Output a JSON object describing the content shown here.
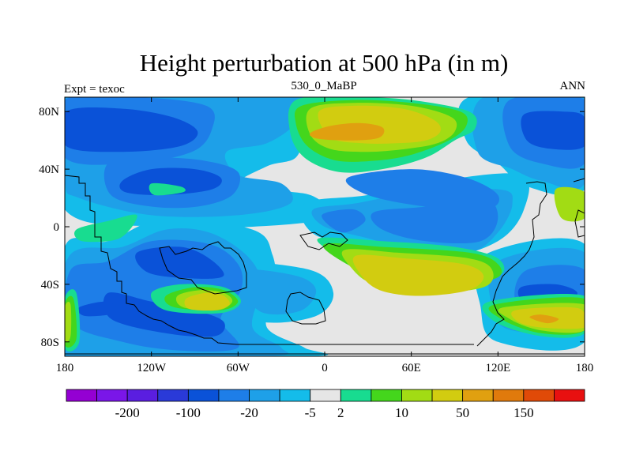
{
  "chart_data": {
    "type": "contour_map",
    "title": "Height perturbation at 500 hPa (in m)",
    "left_label": "Expt = texoc",
    "center_label": "530_0_MaBP",
    "right_label": "ANN",
    "x_ticks": [
      {
        "value": -180,
        "label": "180"
      },
      {
        "value": -120,
        "label": "120W"
      },
      {
        "value": -60,
        "label": "60W"
      },
      {
        "value": 0,
        "label": "0"
      },
      {
        "value": 60,
        "label": "60E"
      },
      {
        "value": 120,
        "label": "120E"
      },
      {
        "value": 180,
        "label": "180"
      }
    ],
    "y_ticks": [
      {
        "value": 80,
        "label": "80N"
      },
      {
        "value": 40,
        "label": "40N"
      },
      {
        "value": 0,
        "label": "0"
      },
      {
        "value": -40,
        "label": "40S"
      },
      {
        "value": -80,
        "label": "80S"
      }
    ],
    "xlim": [
      -180,
      180
    ],
    "ylim": [
      -90,
      90
    ],
    "colorbar": {
      "colors": [
        "#9400d3",
        "#7a16e8",
        "#5a1ee0",
        "#2a3ad8",
        "#0a52d8",
        "#1e7ee8",
        "#1ea0e8",
        "#14bcea",
        "#e6e6e6",
        "#18dc90",
        "#44d61c",
        "#a2dc14",
        "#d2cc10",
        "#e0a010",
        "#e07a0c",
        "#e04a08",
        "#e81010"
      ],
      "tick_labels": [
        {
          "after_index": 1,
          "label": "-200"
        },
        {
          "after_index": 3,
          "label": "-100"
        },
        {
          "after_index": 5,
          "label": "-20"
        },
        {
          "after_index": 7,
          "label": "-5"
        },
        {
          "after_index": 8,
          "label": "2"
        },
        {
          "after_index": 10,
          "label": "10"
        },
        {
          "after_index": 12,
          "label": "50"
        },
        {
          "after_index": 14,
          "label": "150"
        }
      ]
    },
    "field_levels": [
      {
        "color": "#0a52d8",
        "regions": [
          [
            -179,
            80,
            -140,
            82,
            -105,
            76,
            -88,
            66,
            -100,
            56,
            -140,
            52,
            -179,
            56
          ],
          [
            138,
            78,
            165,
            80,
            180,
            76,
            180,
            56,
            158,
            54,
            140,
            60
          ],
          [
            -140,
            32,
            -120,
            40,
            -90,
            40,
            -72,
            34,
            -78,
            26,
            -110,
            22,
            -138,
            24
          ],
          [
            -150,
            -46,
            -120,
            -52,
            -90,
            -58,
            -70,
            -66,
            -76,
            -76,
            -110,
            -74,
            -148,
            -64
          ],
          [
            -130,
            -18,
            -100,
            -14,
            -80,
            -22,
            -70,
            -34,
            -90,
            -36,
            -122,
            -32
          ],
          [
            -170,
            -56,
            -150,
            -52,
            -146,
            -60,
            -166,
            -62
          ],
          [
            136,
            -42,
            160,
            -40,
            175,
            -46,
            162,
            -54,
            138,
            -52
          ]
        ]
      },
      {
        "color": "#1e7ee8",
        "regions": [
          [
            -180,
            88,
            -130,
            90,
            -82,
            84,
            -78,
            68,
            -92,
            52,
            -135,
            44,
            -180,
            48
          ],
          [
            -150,
            44,
            -120,
            48,
            -84,
            46,
            -60,
            38,
            -64,
            22,
            -88,
            14,
            -120,
            14,
            -148,
            22
          ],
          [
            -176,
            -30,
            -150,
            -24,
            -120,
            -10,
            -80,
            -12,
            -60,
            -26,
            -58,
            -44,
            -72,
            -64,
            -60,
            -84,
            -100,
            -86,
            -140,
            -80,
            -176,
            -66
          ],
          [
            128,
            88,
            180,
            88,
            180,
            44,
            150,
            44,
            128,
            56
          ],
          [
            140,
            -30,
            180,
            -30,
            180,
            -64,
            150,
            -64,
            132,
            -52
          ],
          [
            34,
            10,
            70,
            14,
            110,
            20,
            120,
            6,
            108,
            -10,
            70,
            -10,
            40,
            -2
          ],
          [
            -2,
            8,
            20,
            12,
            28,
            4,
            12,
            -4
          ],
          [
            16,
            34,
            60,
            40,
            98,
            34,
            120,
            22,
            112,
            12,
            70,
            14,
            30,
            22
          ]
        ]
      },
      {
        "color": "#1ea0e8",
        "regions": [
          [
            -180,
            90,
            -20,
            90,
            -24,
            82,
            -20,
            72,
            -40,
            58,
            -68,
            52,
            -60,
            36,
            -30,
            30,
            -24,
            16,
            -60,
            8,
            -120,
            8,
            -170,
            20,
            -180,
            32
          ],
          [
            -178,
            -22,
            -140,
            -14,
            -110,
            -2,
            -80,
            -4,
            -54,
            -20,
            -44,
            -40,
            -50,
            -70,
            -30,
            -84,
            -40,
            -90,
            -180,
            -90
          ],
          [
            110,
            90,
            180,
            90,
            180,
            30,
            150,
            32,
            130,
            40,
            106,
            52
          ],
          [
            120,
            -24,
            180,
            -18,
            180,
            -70,
            130,
            -72,
            116,
            -56
          ],
          [
            -8,
            12,
            20,
            16,
            56,
            22,
            120,
            26,
            130,
            16,
            120,
            -4,
            100,
            -18,
            60,
            -16,
            30,
            -8,
            0,
            0
          ],
          [
            -60,
            -30,
            -20,
            -34,
            -6,
            -44,
            -16,
            -58,
            -42,
            -60,
            -56,
            -46
          ]
        ]
      },
      {
        "color": "#14bcea",
        "regions": [
          [
            -180,
            90,
            -5,
            90,
            -10,
            80,
            -14,
            66,
            -20,
            48,
            -40,
            42,
            -60,
            28,
            -10,
            22,
            0,
            6,
            -50,
            0,
            -110,
            0,
            -180,
            12
          ],
          [
            -180,
            -14,
            -150,
            -10,
            -110,
            6,
            -50,
            -2,
            -36,
            -20,
            -34,
            -46,
            -40,
            -70,
            -14,
            -84,
            -10,
            -90,
            -180,
            -90
          ],
          [
            100,
            90,
            180,
            90,
            180,
            26,
            140,
            28,
            120,
            44,
            98,
            60
          ],
          [
            110,
            -20,
            180,
            -12,
            180,
            -80,
            120,
            -80,
            108,
            -56
          ],
          [
            -14,
            16,
            30,
            22,
            80,
            32,
            136,
            36,
            138,
            12,
            120,
            -10,
            80,
            -22,
            40,
            -14,
            -6,
            -6
          ],
          [
            -66,
            -26,
            -10,
            -30,
            6,
            -46,
            -6,
            -62,
            -44,
            -66,
            -70,
            -50
          ]
        ]
      },
      {
        "color": "#e6e6e6",
        "regions": [
          [
            -180,
            90,
            180,
            90,
            180,
            -90,
            -180,
            -90
          ]
        ]
      },
      {
        "color": "#18dc90",
        "regions": [
          [
            -20,
            88,
            20,
            90,
            60,
            88,
            100,
            80,
            104,
            68,
            90,
            60,
            70,
            48,
            40,
            40,
            10,
            38,
            -14,
            48,
            -24,
            66
          ],
          [
            -4,
            -8,
            40,
            -10,
            90,
            -14,
            120,
            -22,
            120,
            -34,
            80,
            -34,
            40,
            -30,
            10,
            -20
          ],
          [
            -120,
            -46,
            -100,
            -40,
            -70,
            -42,
            -58,
            -52,
            -72,
            -60,
            -110,
            -58
          ],
          [
            114,
            -52,
            180,
            -48,
            180,
            -74,
            150,
            -76,
            118,
            -66
          ],
          [
            -172,
            -2,
            -150,
            4,
            -130,
            8,
            -142,
            -8,
            -168,
            -10
          ],
          [
            -180,
            -50,
            -172,
            -46,
            -170,
            -80,
            -180,
            -84
          ],
          [
            -120,
            30,
            -100,
            28,
            -98,
            24,
            -118,
            22
          ]
        ]
      },
      {
        "color": "#44d61c",
        "regions": [
          [
            -16,
            84,
            20,
            88,
            60,
            86,
            94,
            80,
            98,
            70,
            86,
            60,
            60,
            50,
            36,
            46,
            8,
            46,
            -12,
            56,
            -20,
            72
          ],
          [
            0,
            -12,
            40,
            -14,
            100,
            -18,
            120,
            -26,
            118,
            -36,
            80,
            -40,
            40,
            -36,
            12,
            -24
          ],
          [
            -110,
            -48,
            -90,
            -42,
            -70,
            -44,
            -60,
            -52,
            -72,
            -58,
            -104,
            -56
          ],
          [
            118,
            -54,
            180,
            -50,
            180,
            -72,
            150,
            -74,
            122,
            -64
          ],
          [
            -180,
            -54,
            -174,
            -50,
            -172,
            -78,
            -180,
            -82
          ]
        ]
      },
      {
        "color": "#a2dc14",
        "regions": [
          [
            -10,
            82,
            20,
            86,
            60,
            84,
            88,
            76,
            90,
            66,
            78,
            58,
            56,
            54,
            30,
            52,
            4,
            54,
            -10,
            64
          ],
          [
            14,
            -16,
            50,
            -18,
            100,
            -22,
            116,
            -30,
            110,
            -42,
            70,
            -46,
            34,
            -40,
            18,
            -28
          ],
          [
            -102,
            -48,
            -86,
            -44,
            -70,
            -46,
            -64,
            -52,
            -74,
            -58,
            -98,
            -56
          ],
          [
            124,
            -56,
            180,
            -54,
            180,
            -72,
            150,
            -72,
            128,
            -64
          ],
          [
            160,
            26,
            180,
            24,
            180,
            6,
            164,
            6
          ],
          [
            -180,
            -56,
            -176,
            -54,
            -176,
            -76,
            -180,
            -78
          ]
        ]
      },
      {
        "color": "#d2cc10",
        "regions": [
          [
            -4,
            80,
            20,
            84,
            54,
            82,
            76,
            74,
            80,
            66,
            70,
            60,
            50,
            58,
            26,
            58,
            4,
            62
          ],
          [
            22,
            -20,
            56,
            -22,
            96,
            -26,
            110,
            -34,
            100,
            -44,
            66,
            -48,
            38,
            -44,
            24,
            -32
          ],
          [
            -96,
            -50,
            -82,
            -46,
            -70,
            -48,
            -66,
            -54,
            -76,
            -58,
            -94,
            -57
          ],
          [
            132,
            -58,
            170,
            -56,
            180,
            -60,
            180,
            -70,
            150,
            -70,
            134,
            -66
          ]
        ]
      },
      {
        "color": "#e0a010",
        "regions": [
          [
            -10,
            65,
            4,
            70,
            24,
            72,
            40,
            69,
            38,
            62,
            20,
            60,
            -4,
            61
          ],
          [
            142,
            -63,
            150,
            -61,
            162,
            -64,
            154,
            -67
          ]
        ]
      }
    ]
  }
}
